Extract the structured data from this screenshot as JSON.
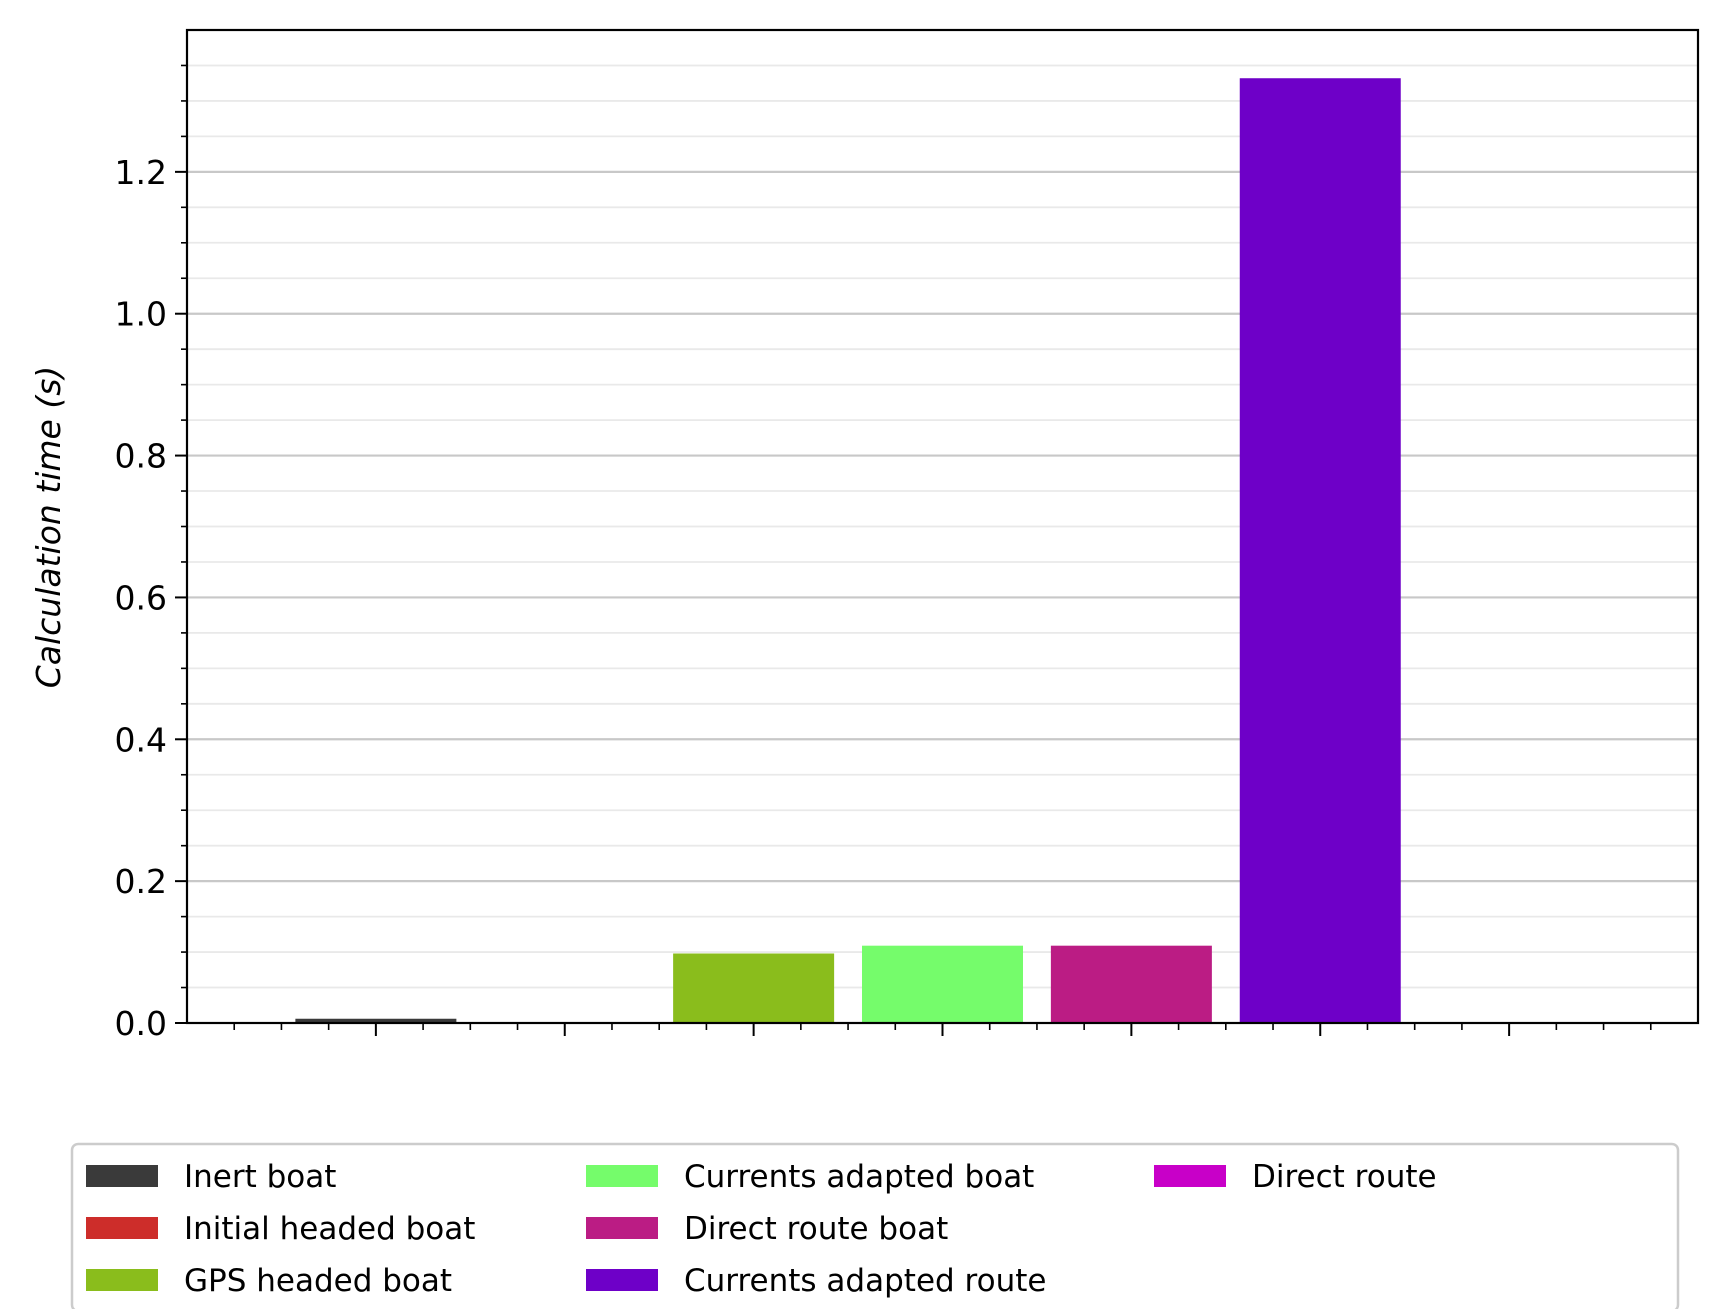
{
  "chart_data": {
    "type": "bar",
    "title": "",
    "xlabel": "",
    "ylabel": "Calculation time (s)",
    "ylim": [
      0,
      1.4
    ],
    "yticks": [
      "0.0",
      "0.2",
      "0.4",
      "0.6",
      "0.8",
      "1.0",
      "1.2"
    ],
    "grid": "horizontal major and minor",
    "legend_position": "bottom, outside plot",
    "series": [
      {
        "name": "Inert boat",
        "value": 0.006,
        "color": "#3a3a3a"
      },
      {
        "name": "Initial headed boat",
        "value": 0.0,
        "color": "#cd2d2a"
      },
      {
        "name": "GPS headed boat",
        "value": 0.098,
        "color": "#8abd1c"
      },
      {
        "name": "Currents adapted boat",
        "value": 0.109,
        "color": "#75fc6b"
      },
      {
        "name": "Direct route boat",
        "value": 0.109,
        "color": "#bb1c84"
      },
      {
        "name": "Currents adapted route",
        "value": 1.332,
        "color": "#6e00c8"
      },
      {
        "name": "Direct route",
        "value": 0.0,
        "color": "#c800c8"
      }
    ]
  }
}
